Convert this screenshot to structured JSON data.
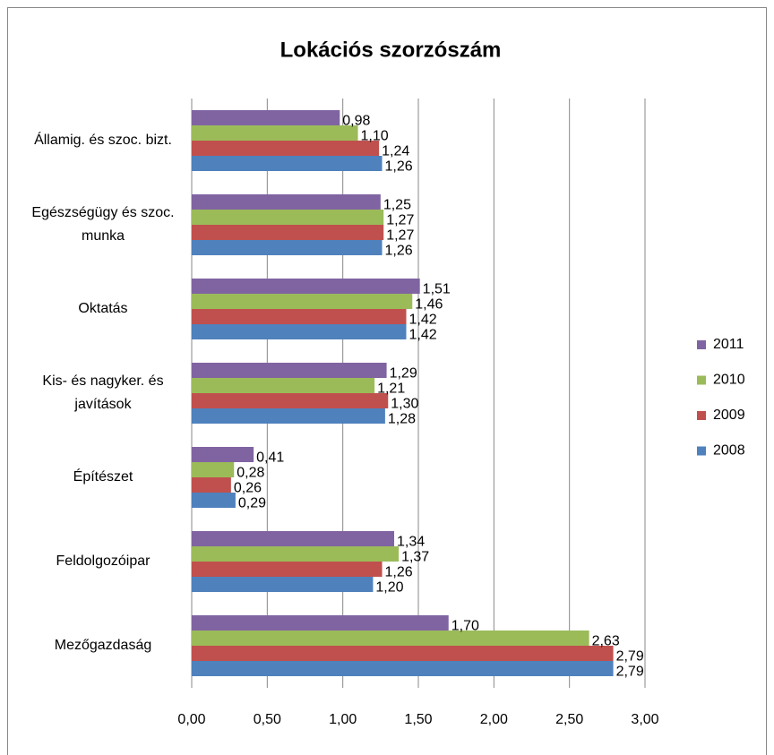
{
  "chart_data": {
    "type": "bar",
    "orientation": "horizontal",
    "title": "Lokációs szorzószám",
    "categories": [
      "Államig. és szoc. bizt.",
      "Egészségügy és szoc. munka",
      "Oktatás",
      "Kis- és nagyker. és javítások",
      "Építészet",
      "Feldolgozóipar",
      "Mezőgazdaság"
    ],
    "series": [
      {
        "name": "2008",
        "color": "#4f81bd",
        "values": [
          1.26,
          1.26,
          1.42,
          1.28,
          0.29,
          1.2,
          2.79
        ],
        "value_labels": [
          "1,26",
          "1,26",
          "1,42",
          "1,28",
          "0,29",
          "1,20",
          "2,79"
        ]
      },
      {
        "name": "2009",
        "color": "#c0504d",
        "values": [
          1.24,
          1.27,
          1.42,
          1.3,
          0.26,
          1.26,
          2.79
        ],
        "value_labels": [
          "1,24",
          "1,27",
          "1,42",
          "1,30",
          "0,26",
          "1,26",
          "2,79"
        ]
      },
      {
        "name": "2010",
        "color": "#9bbb59",
        "values": [
          1.1,
          1.27,
          1.46,
          1.21,
          0.28,
          1.37,
          2.63
        ],
        "value_labels": [
          "1,10",
          "1,27",
          "1,46",
          "1,21",
          "0,28",
          "1,37",
          "2,63"
        ]
      },
      {
        "name": "2011",
        "color": "#8064a2",
        "values": [
          0.98,
          1.25,
          1.51,
          1.29,
          0.41,
          1.34,
          1.7
        ],
        "value_labels": [
          "0,98",
          "1,25",
          "1,51",
          "1,29",
          "0,41",
          "1,34",
          "1,70"
        ]
      }
    ],
    "xlim": [
      0,
      3
    ],
    "xticks": [
      {
        "value": 0,
        "label": "0,00"
      },
      {
        "value": 0.5,
        "label": "0,50"
      },
      {
        "value": 1,
        "label": "1,00"
      },
      {
        "value": 1.5,
        "label": "1,50"
      },
      {
        "value": 2,
        "label": "2,00"
      },
      {
        "value": 2.5,
        "label": "2,50"
      },
      {
        "value": 3,
        "label": "3,00"
      }
    ],
    "grid": true,
    "legend": "right"
  }
}
